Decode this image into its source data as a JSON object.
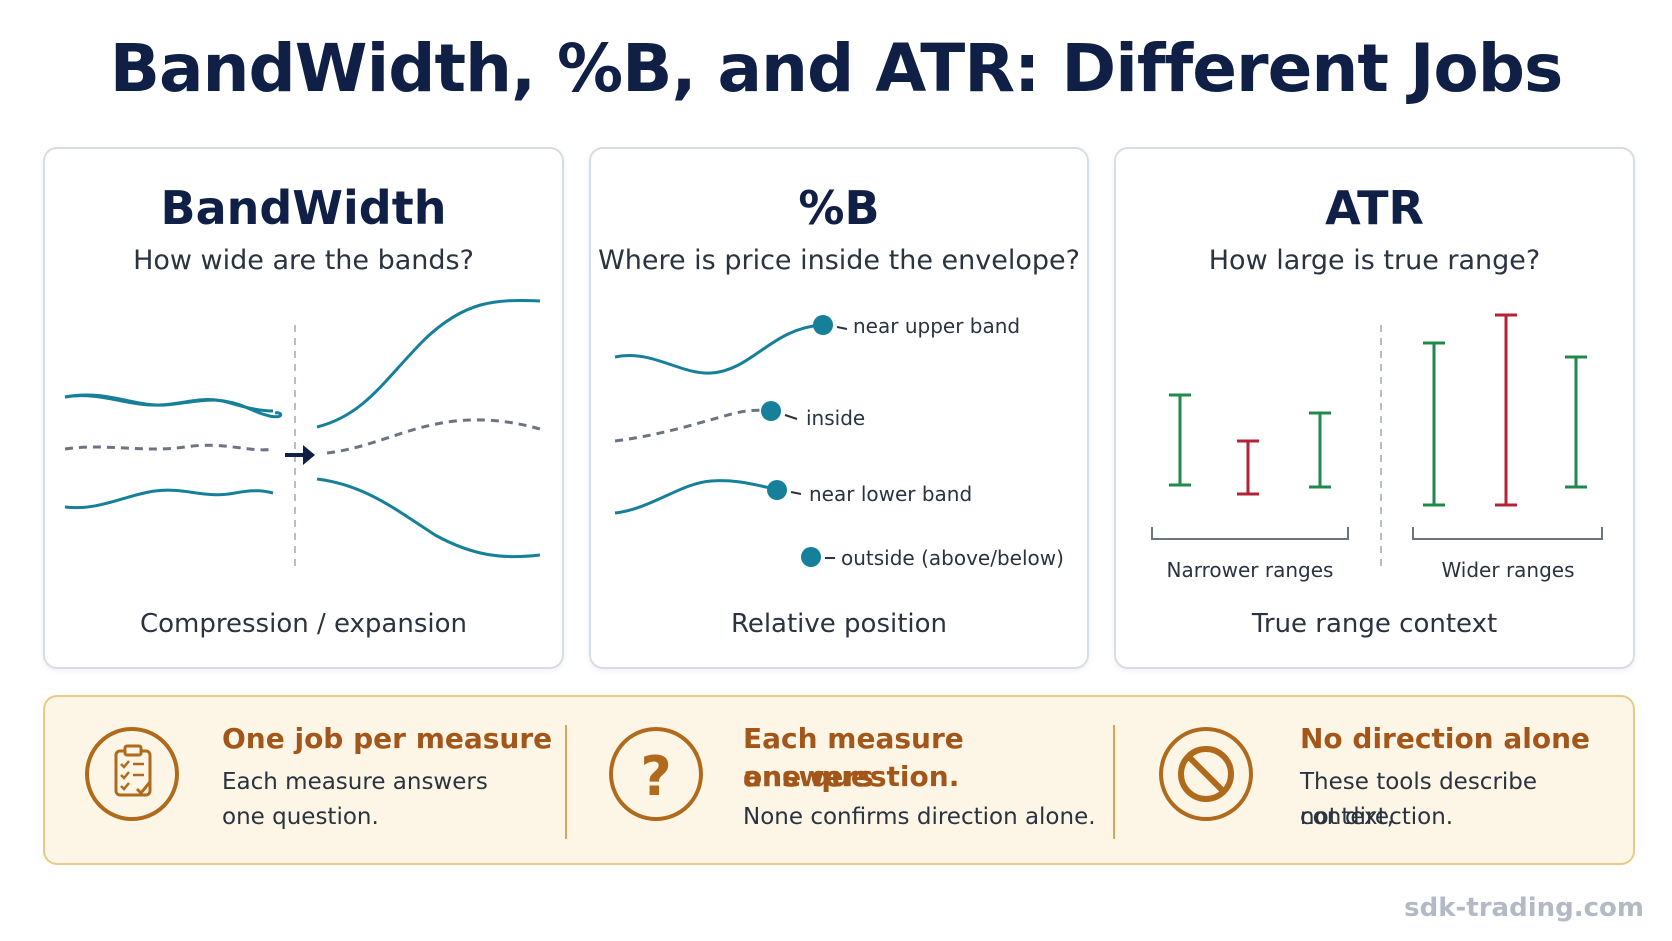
{
  "title": "BandWidth, %B, and ATR: Different Jobs",
  "panels": [
    {
      "title": "BandWidth",
      "subtitle": "How wide are the bands?",
      "footer": "Compression / expansion"
    },
    {
      "title": "%B",
      "subtitle": "Where is price inside the envelope?",
      "footer": "Relative position",
      "markers": [
        {
          "label": "near upper band",
          "color": "#16809a"
        },
        {
          "label": "inside",
          "color": "#16809a"
        },
        {
          "label": "near lower band",
          "color": "#16809a"
        },
        {
          "label": "outside (above/below)",
          "color": "#16809a"
        }
      ]
    },
    {
      "title": "ATR",
      "subtitle": "How large is true range?",
      "footer": "True range context",
      "groups": [
        {
          "label": "Narrower ranges"
        },
        {
          "label": "Wider ranges"
        }
      ]
    }
  ],
  "summary": [
    {
      "icon": "clipboard-checklist-icon",
      "heading": "One job per measure",
      "lines": [
        "Each measure answers",
        "one question."
      ]
    },
    {
      "icon": "question-mark-icon",
      "heading_lines": [
        "Each measure answers",
        "one question."
      ],
      "lines": [
        "None confirms direction alone."
      ]
    },
    {
      "icon": "no-entry-icon",
      "heading": "No direction alone",
      "lines": [
        "These tools describe context,",
        "not direction."
      ]
    }
  ],
  "colors": {
    "navy": "#0f1f45",
    "teal": "#16809a",
    "green": "#1f8a4c",
    "red": "#b42335",
    "accent_orange": "#a2561a",
    "summary_bg": "#fdf6e6"
  },
  "watermark": "sdk-trading.com"
}
